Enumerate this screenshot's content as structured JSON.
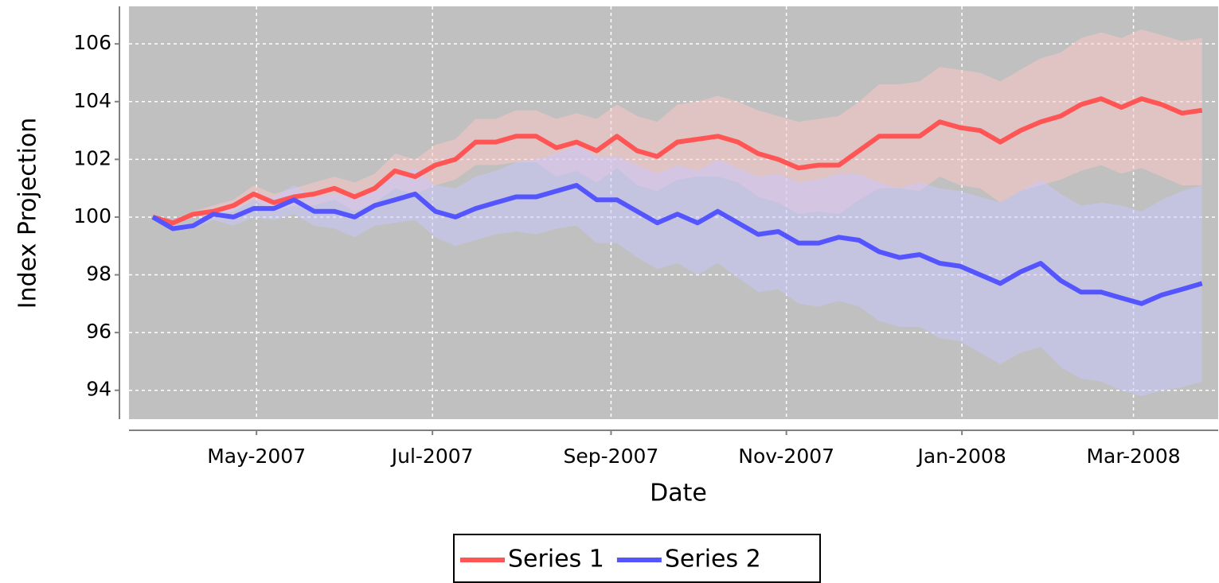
{
  "chart_data": {
    "type": "line",
    "x_label": "Date",
    "y_label": "Index Projection",
    "x": [
      0,
      1,
      2,
      3,
      4,
      5,
      6,
      7,
      8,
      9,
      10,
      11,
      12,
      13,
      14,
      15,
      16,
      17,
      18,
      19,
      20,
      21,
      22,
      23,
      24,
      25,
      26,
      27,
      28,
      29,
      30,
      31,
      32,
      33,
      34,
      35,
      36,
      37,
      38,
      39,
      40,
      41,
      42,
      43,
      44,
      45,
      46,
      47,
      48,
      49,
      50,
      51,
      52
    ],
    "xlim": [
      -1.18,
      52.8
    ],
    "xticks": [
      {
        "value": 5.14,
        "label": "May-2007"
      },
      {
        "value": 13.86,
        "label": "Jul-2007"
      },
      {
        "value": 22.71,
        "label": "Sep-2007"
      },
      {
        "value": 31.4,
        "label": "Nov-2007"
      },
      {
        "value": 40.1,
        "label": "Jan-2008"
      },
      {
        "value": 48.6,
        "label": "Mar-2008"
      }
    ],
    "ylim": [
      93,
      107.3
    ],
    "yticks": [
      94,
      96,
      98,
      100,
      102,
      104,
      106
    ],
    "grid": true,
    "legend": "bottom",
    "series": [
      {
        "name": "Series 1",
        "color": "#ff5555",
        "band_color": "rgba(255,200,200,0.5)",
        "values": [
          100.0,
          99.8,
          100.1,
          100.2,
          100.4,
          100.8,
          100.5,
          100.7,
          100.8,
          101.0,
          100.7,
          101.0,
          101.6,
          101.4,
          101.8,
          102.0,
          102.6,
          102.6,
          102.8,
          102.8,
          102.4,
          102.6,
          102.3,
          102.8,
          102.3,
          102.1,
          102.6,
          102.7,
          102.8,
          102.6,
          102.2,
          102.0,
          101.7,
          101.8,
          101.8,
          102.3,
          102.8,
          102.8,
          102.8,
          103.3,
          103.1,
          103.0,
          102.6,
          103.0,
          103.3,
          103.5,
          103.9,
          104.1,
          103.8,
          104.1,
          103.9,
          103.6,
          103.7
        ],
        "lower": [
          100.0,
          99.8,
          100.0,
          100.1,
          100.2,
          100.6,
          100.2,
          100.4,
          100.4,
          100.6,
          100.2,
          100.5,
          101.0,
          100.8,
          101.1,
          101.3,
          101.8,
          101.8,
          101.9,
          101.9,
          101.4,
          101.6,
          101.2,
          101.7,
          101.1,
          100.9,
          101.3,
          101.4,
          101.4,
          101.2,
          100.7,
          100.5,
          100.1,
          100.2,
          100.1,
          100.6,
          101.0,
          101.0,
          100.9,
          101.4,
          101.1,
          101.0,
          100.5,
          100.9,
          101.1,
          101.3,
          101.6,
          101.8,
          101.5,
          101.7,
          101.4,
          101.1,
          101.1
        ],
        "upper": [
          100.0,
          99.9,
          100.2,
          100.4,
          100.6,
          101.1,
          100.8,
          101.0,
          101.2,
          101.4,
          101.2,
          101.5,
          102.2,
          102.0,
          102.5,
          102.7,
          103.4,
          103.4,
          103.7,
          103.7,
          103.4,
          103.6,
          103.4,
          103.9,
          103.5,
          103.3,
          103.9,
          104.0,
          104.2,
          104.0,
          103.7,
          103.5,
          103.3,
          103.4,
          103.5,
          104.0,
          104.6,
          104.6,
          104.7,
          105.2,
          105.1,
          105.0,
          104.7,
          105.1,
          105.5,
          105.7,
          106.2,
          106.4,
          106.2,
          106.5,
          106.3,
          106.1,
          106.2
        ]
      },
      {
        "name": "Series 2",
        "color": "#5555ff",
        "band_color": "rgba(200,200,255,0.5)",
        "values": [
          100.0,
          99.6,
          99.7,
          100.1,
          100.0,
          100.3,
          100.3,
          100.6,
          100.2,
          100.2,
          100.0,
          100.4,
          100.6,
          100.8,
          100.2,
          100.0,
          100.3,
          100.5,
          100.7,
          100.7,
          100.9,
          101.1,
          100.6,
          100.6,
          100.2,
          99.8,
          100.1,
          99.8,
          100.2,
          99.8,
          99.4,
          99.5,
          99.1,
          99.1,
          99.3,
          99.2,
          98.8,
          98.6,
          98.7,
          98.4,
          98.3,
          98.0,
          97.7,
          98.1,
          98.4,
          97.8,
          97.4,
          97.4,
          97.2,
          97.0,
          97.3,
          97.5,
          97.7
        ],
        "lower": [
          100.0,
          99.5,
          99.6,
          99.9,
          99.7,
          100.0,
          99.9,
          100.1,
          99.7,
          99.6,
          99.3,
          99.7,
          99.8,
          99.9,
          99.3,
          99.0,
          99.2,
          99.4,
          99.5,
          99.4,
          99.6,
          99.7,
          99.1,
          99.1,
          98.6,
          98.2,
          98.4,
          98.0,
          98.4,
          97.9,
          97.4,
          97.5,
          97.0,
          96.9,
          97.1,
          96.9,
          96.4,
          96.2,
          96.2,
          95.8,
          95.7,
          95.3,
          94.9,
          95.3,
          95.5,
          94.8,
          94.4,
          94.3,
          94.0,
          93.8,
          94.0,
          94.1,
          94.3
        ],
        "upper": [
          100.0,
          99.7,
          99.8,
          100.3,
          100.3,
          100.6,
          100.7,
          101.1,
          100.7,
          100.8,
          100.7,
          101.1,
          101.4,
          101.7,
          101.1,
          101.0,
          101.4,
          101.6,
          101.9,
          102.0,
          102.2,
          102.5,
          102.1,
          102.1,
          101.8,
          101.5,
          101.8,
          101.6,
          102.0,
          101.7,
          101.4,
          101.5,
          101.2,
          101.3,
          101.5,
          101.5,
          101.2,
          101.0,
          101.2,
          101.0,
          100.9,
          100.7,
          100.5,
          100.9,
          101.3,
          100.8,
          100.4,
          100.5,
          100.4,
          100.2,
          100.6,
          100.9,
          101.1
        ]
      }
    ]
  }
}
